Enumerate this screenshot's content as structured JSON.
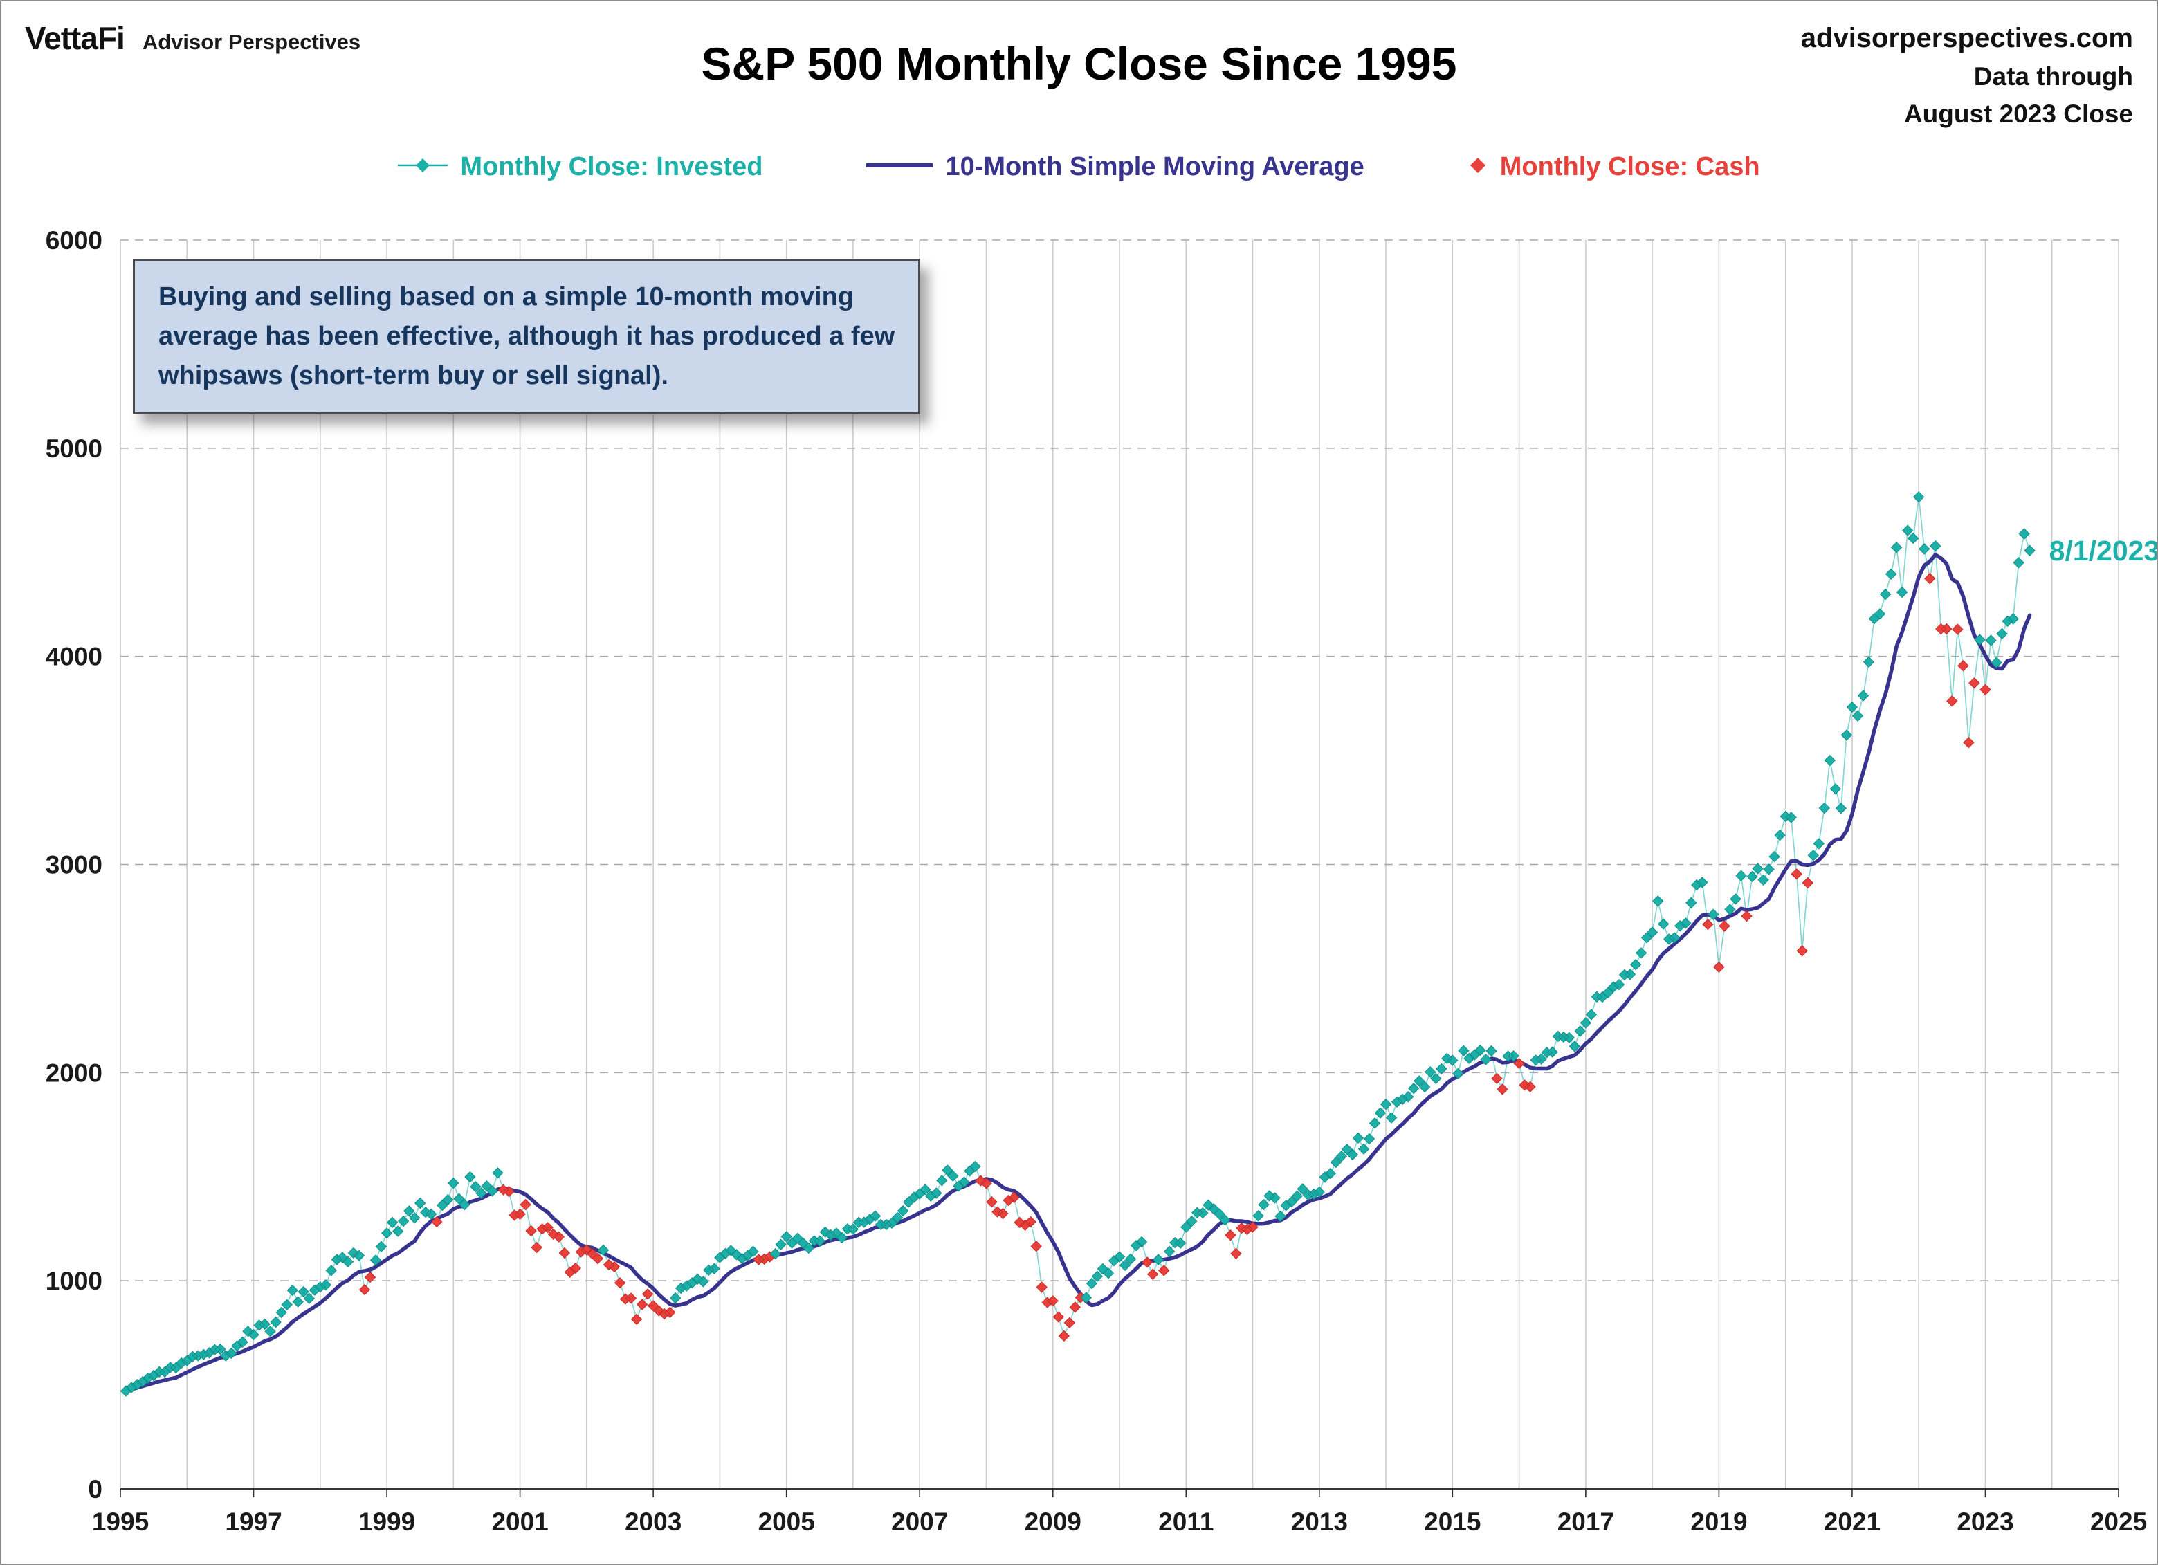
{
  "header": {
    "logo": "VettaFi",
    "logo_sub": "Advisor Perspectives",
    "title": "S&P 500 Monthly Close Since 1995",
    "source_site": "advisorperspectives.com",
    "data_through_line1": "Data through",
    "data_through_line2": "August 2023 Close"
  },
  "legend": [
    {
      "label": "Monthly Close: Invested",
      "color_key": "invested",
      "marker": "diamond-on-line"
    },
    {
      "label": "10-Month Simple Moving Average",
      "color_key": "sma",
      "marker": "line"
    },
    {
      "label": "Monthly Close: Cash",
      "color_key": "cash",
      "marker": "diamond"
    }
  ],
  "annotation": {
    "lines": [
      "Buying and selling based on a simple 10-month moving",
      "average has been effective, although it has produced a few",
      "whipsaws (short-term buy or sell signal)."
    ]
  },
  "last_point_label": "8/1/2023",
  "colors": {
    "invested": "#1CB0A8",
    "invested_edge": "#0F8F88",
    "connector": "#5BC8C2",
    "cash": "#E8403B",
    "sma": "#393390",
    "annotation_bg": "#CBD8EC",
    "annotation_text": "#17365D"
  },
  "chart_data": {
    "type": "line",
    "title": "S&P 500 Monthly Close Since 1995",
    "xlabel": "",
    "ylabel": "",
    "xlim": [
      1995,
      2025
    ],
    "ylim": [
      0,
      6000
    ],
    "x_ticks": [
      1995,
      1997,
      1999,
      2001,
      2003,
      2005,
      2007,
      2009,
      2011,
      2013,
      2015,
      2017,
      2019,
      2021,
      2023,
      2025
    ],
    "y_ticks": [
      0,
      1000,
      2000,
      3000,
      4000,
      5000,
      6000
    ],
    "grid": {
      "horizontal": "dashed",
      "vertical": "solid"
    },
    "x_start_year": 1995,
    "sma_window": 10,
    "signal_rule": "point shown as Cash when monthly close is below the 10-month simple moving average, Invested otherwise",
    "series": [
      {
        "name": "S&P 500 Monthly Close",
        "by_year": {
          "1995": [
            470,
            487,
            501,
            515,
            533,
            545,
            562,
            562,
            584,
            582,
            605,
            616
          ],
          "1996": [
            636,
            640,
            646,
            654,
            669,
            671,
            640,
            652,
            687,
            705,
            757,
            741
          ],
          "1997": [
            786,
            791,
            757,
            801,
            848,
            885,
            954,
            899,
            947,
            915,
            955,
            970
          ],
          "1998": [
            980,
            1049,
            1102,
            1112,
            1091,
            1134,
            1121,
            957,
            1017,
            1099,
            1164,
            1229
          ],
          "1999": [
            1280,
            1238,
            1286,
            1335,
            1302,
            1373,
            1329,
            1320,
            1283,
            1363,
            1389,
            1469
          ],
          "2000": [
            1394,
            1366,
            1499,
            1452,
            1421,
            1455,
            1431,
            1518,
            1437,
            1429,
            1315,
            1320
          ],
          "2001": [
            1366,
            1240,
            1160,
            1249,
            1256,
            1224,
            1211,
            1134,
            1041,
            1060,
            1139,
            1148
          ],
          "2002": [
            1130,
            1107,
            1147,
            1077,
            1067,
            990,
            912,
            916,
            815,
            886,
            936,
            880
          ],
          "2003": [
            856,
            841,
            848,
            917,
            964,
            975,
            990,
            1008,
            996,
            1051,
            1058,
            1112
          ],
          "2004": [
            1131,
            1145,
            1126,
            1107,
            1121,
            1141,
            1102,
            1104,
            1115,
            1130,
            1174,
            1212
          ],
          "2005": [
            1181,
            1204,
            1181,
            1157,
            1192,
            1191,
            1234,
            1220,
            1229,
            1207,
            1249,
            1248
          ],
          "2006": [
            1280,
            1281,
            1295,
            1311,
            1270,
            1270,
            1277,
            1304,
            1336,
            1378,
            1401,
            1418
          ],
          "2007": [
            1438,
            1407,
            1421,
            1482,
            1531,
            1503,
            1455,
            1474,
            1527,
            1549,
            1481,
            1468
          ],
          "2008": [
            1379,
            1331,
            1323,
            1386,
            1400,
            1280,
            1267,
            1283,
            1166,
            969,
            896,
            903
          ],
          "2009": [
            826,
            735,
            798,
            873,
            919,
            919,
            987,
            1021,
            1057,
            1036,
            1096,
            1115
          ],
          "2010": [
            1074,
            1104,
            1169,
            1187,
            1089,
            1031,
            1102,
            1049,
            1141,
            1183,
            1181,
            1258
          ],
          "2011": [
            1286,
            1327,
            1326,
            1364,
            1345,
            1321,
            1292,
            1219,
            1131,
            1253,
            1247,
            1258
          ],
          "2012": [
            1312,
            1366,
            1408,
            1398,
            1310,
            1362,
            1379,
            1407,
            1441,
            1412,
            1416,
            1426
          ],
          "2013": [
            1498,
            1515,
            1569,
            1598,
            1631,
            1606,
            1686,
            1633,
            1682,
            1757,
            1806,
            1848
          ],
          "2014": [
            1783,
            1859,
            1872,
            1884,
            1924,
            1960,
            1931,
            2003,
            1972,
            2018,
            2068,
            2059
          ],
          "2015": [
            1995,
            2105,
            2068,
            2086,
            2107,
            2063,
            2104,
            1972,
            1920,
            2079,
            2080,
            2044
          ],
          "2016": [
            1940,
            1932,
            2060,
            2065,
            2097,
            2099,
            2174,
            2171,
            2168,
            2126,
            2199,
            2239
          ],
          "2017": [
            2279,
            2364,
            2363,
            2384,
            2412,
            2423,
            2470,
            2472,
            2519,
            2575,
            2648,
            2674
          ],
          "2018": [
            2824,
            2714,
            2641,
            2648,
            2705,
            2718,
            2816,
            2902,
            2914,
            2712,
            2760,
            2507
          ],
          "2019": [
            2704,
            2784,
            2834,
            2946,
            2752,
            2942,
            2980,
            2926,
            2977,
            3038,
            3141,
            3231
          ],
          "2020": [
            3226,
            2954,
            2585,
            2912,
            3044,
            3100,
            3271,
            3500,
            3363,
            3270,
            3622,
            3756
          ],
          "2021": [
            3714,
            3811,
            3973,
            4181,
            4204,
            4298,
            4395,
            4523,
            4308,
            4605,
            4567,
            4766
          ],
          "2022": [
            4516,
            4374,
            4530,
            4132,
            4132,
            3785,
            4130,
            3955,
            3586,
            3872,
            4080,
            3840
          ],
          "2023": [
            4077,
            3970,
            4109,
            4169,
            4180,
            4450,
            4589,
            4508
          ]
        }
      },
      {
        "name": "10-Month Simple Moving Average",
        "derived": "trailing 10-month mean of S&P 500 Monthly Close"
      }
    ]
  }
}
